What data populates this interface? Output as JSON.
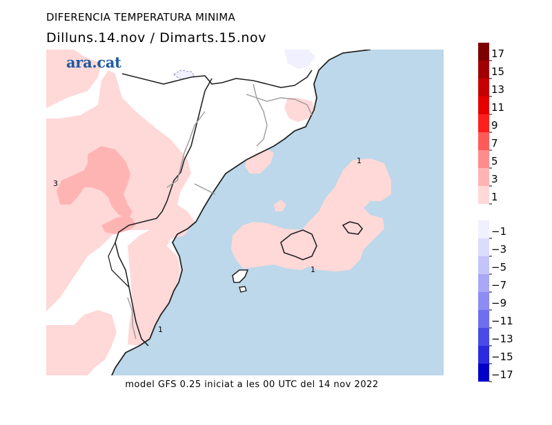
{
  "header": {
    "title": "DIFERENCIA TEMPERATURA MINIMA",
    "subtitle": "Dilluns.14.nov / Dimarts.15.nov",
    "brand": "ara.cat"
  },
  "footer": {
    "caption": "model GFS 0.25 iniciat a les 00 UTC del 14 nov 2022"
  },
  "legend": {
    "positive": [
      {
        "label": "17",
        "color": "#7d0000"
      },
      {
        "label": "15",
        "color": "#a00000"
      },
      {
        "label": "13",
        "color": "#c40000"
      },
      {
        "label": "11",
        "color": "#e60000"
      },
      {
        "label": "9",
        "color": "#ff1e1e"
      },
      {
        "label": "7",
        "color": "#ff5a5a"
      },
      {
        "label": "5",
        "color": "#ff8c8c"
      },
      {
        "label": "3",
        "color": "#ffb4b4"
      },
      {
        "label": "1",
        "color": "#ffd8d8"
      }
    ],
    "negative": [
      {
        "label": "−1",
        "color": "#f0f0ff"
      },
      {
        "label": "−3",
        "color": "#dcdcff"
      },
      {
        "label": "−5",
        "color": "#c4c4fa"
      },
      {
        "label": "−7",
        "color": "#a8a8f6"
      },
      {
        "label": "−9",
        "color": "#8c8cf2"
      },
      {
        "label": "−11",
        "color": "#6e6eee"
      },
      {
        "label": "−13",
        "color": "#4a4ae8"
      },
      {
        "label": "−15",
        "color": "#2a2ae0"
      },
      {
        "label": "−17",
        "color": "#0000c8"
      }
    ]
  },
  "map": {
    "sea_color": "#bcd8ea",
    "land_color": "#ffffff",
    "contour_labels": [
      "1",
      "1",
      "1",
      "3"
    ]
  }
}
